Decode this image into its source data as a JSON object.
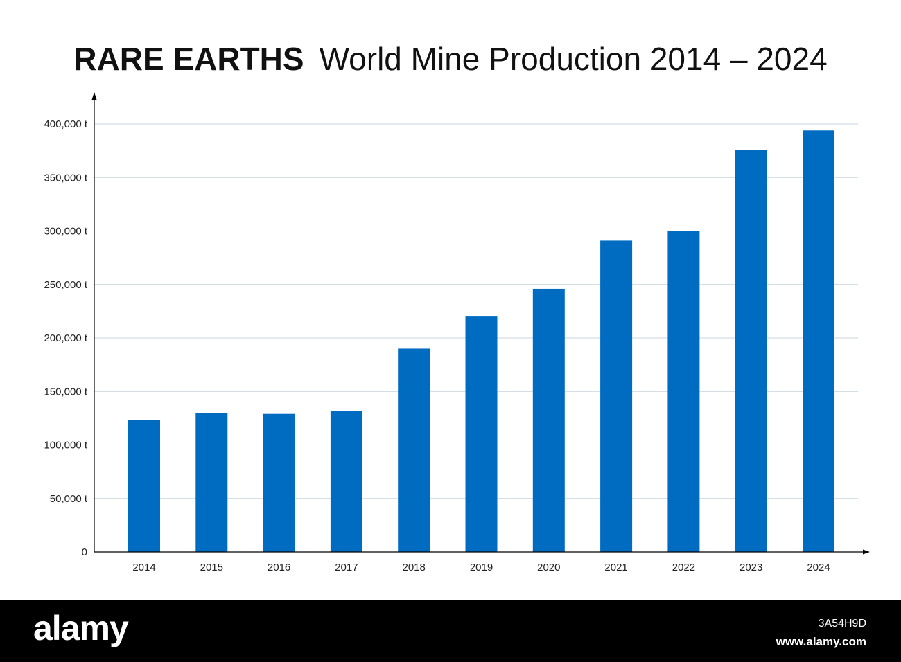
{
  "chart_data": {
    "type": "bar",
    "title_bold": "RARE EARTHS",
    "title": "World Mine Production 2014 – 2024",
    "categories": [
      "2014",
      "2015",
      "2016",
      "2017",
      "2018",
      "2019",
      "2020",
      "2021",
      "2022",
      "2023",
      "2024"
    ],
    "values": [
      123000,
      130000,
      129000,
      132000,
      190000,
      220000,
      246000,
      291000,
      300000,
      376000,
      394000
    ],
    "ylim": [
      0,
      400000
    ],
    "yticks": [
      0,
      50000,
      100000,
      150000,
      200000,
      250000,
      300000,
      350000,
      400000
    ],
    "ytick_labels": [
      "0",
      "50,000 t",
      "100,000 t",
      "150,000 t",
      "200,000 t",
      "250,000 t",
      "300,000 t",
      "350,000 t",
      "400,000 t"
    ],
    "grid": true,
    "bar_color": "#006CC1",
    "grid_color": "#C8D6DC"
  },
  "footer": {
    "logo": "alamy",
    "image_id": "3A54H9D",
    "site": "www.alamy.com"
  }
}
